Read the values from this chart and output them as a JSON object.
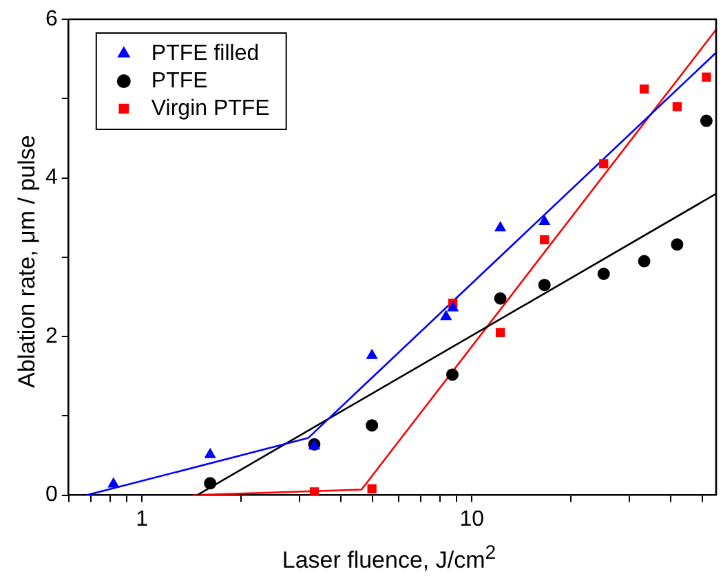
{
  "chart_data": {
    "type": "scatter",
    "xlabel": "Laser fluence, J/cm$^{2}$",
    "ylabel": "Ablation rate, μm / pulse",
    "log": "x",
    "grid": false,
    "legend": "top left",
    "xlim": [
      0.6,
      55
    ],
    "ylim": [
      0,
      6
    ],
    "xticks": [
      {
        "value": 0.6,
        "label": null
      },
      {
        "value": 0.7,
        "label": null
      },
      {
        "value": 0.8,
        "label": null
      },
      {
        "value": 0.9,
        "label": null
      },
      1,
      {
        "value": 2,
        "label": null
      },
      {
        "value": 3,
        "label": null
      },
      {
        "value": 4,
        "label": null
      },
      {
        "value": 5,
        "label": null
      },
      {
        "value": 6,
        "label": null
      },
      {
        "value": 7,
        "label": null
      },
      {
        "value": 8,
        "label": null
      },
      {
        "value": 9,
        "label": null
      },
      10,
      {
        "value": 20,
        "label": null
      },
      {
        "value": 30,
        "label": null
      },
      {
        "value": 40,
        "label": null
      },
      {
        "value": 50,
        "label": null
      }
    ],
    "yticks": [
      0,
      {
        "value": 1,
        "label": null
      },
      2,
      {
        "value": 3,
        "label": null
      },
      4,
      {
        "value": 5,
        "label": null
      },
      6
    ],
    "series": [
      {
        "name": "PTFE filled",
        "marker": "triangle",
        "color": "#0000ff",
        "x": [
          0.82,
          1.61,
          3.33,
          4.98,
          8.35,
          8.76,
          12.2,
          16.6
        ],
        "values": [
          0.14,
          0.51,
          0.62,
          1.76,
          2.25,
          2.36,
          3.37,
          3.45
        ]
      },
      {
        "name": "PTFE",
        "marker": "circle",
        "color": "#000000",
        "x": [
          1.61,
          3.33,
          4.98,
          8.73,
          12.2,
          16.6,
          25.1,
          33.3,
          41.9,
          51.4
        ],
        "values": [
          0.15,
          0.64,
          0.88,
          1.52,
          2.48,
          2.65,
          2.79,
          2.95,
          3.16,
          4.72
        ]
      },
      {
        "name": "Virgin PTFE",
        "marker": "square",
        "color": "#ff0000",
        "x": [
          3.33,
          4.98,
          8.76,
          12.2,
          16.6,
          25.1,
          33.3,
          41.9,
          51.4
        ],
        "values": [
          0.04,
          0.08,
          2.42,
          2.05,
          3.22,
          4.18,
          5.12,
          4.9,
          5.27
        ]
      },
      {
        "type": "line",
        "marker": "none",
        "line_style": "solid",
        "color": "#0000ff",
        "x": [
          0.68,
          3.19,
          55
        ],
        "values": [
          0,
          0.72,
          5.58
        ]
      },
      {
        "type": "line",
        "marker": "none",
        "line_style": "solid",
        "color": "#000000",
        "x": [
          1.47,
          55
        ],
        "values": [
          0,
          3.8
        ]
      },
      {
        "type": "line",
        "marker": "none",
        "line_style": "solid",
        "color": "#ff0000",
        "x": [
          1.43,
          4.63,
          55
        ],
        "values": [
          0,
          0.07,
          5.87
        ]
      }
    ]
  }
}
